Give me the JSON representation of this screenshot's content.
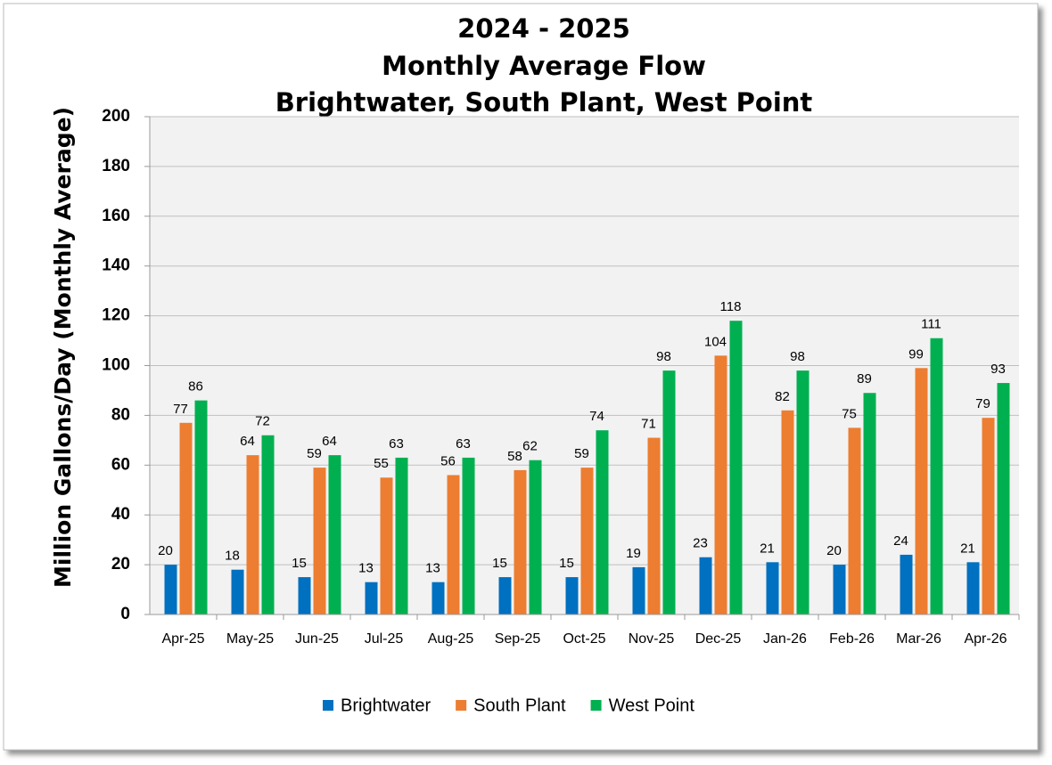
{
  "chart_data": {
    "type": "bar",
    "title": [
      "2024 - 2025",
      "Monthly Average Flow",
      "Brightwater, South Plant, West Point"
    ],
    "y_label": "Million Gallons/Day (Monthly Average)",
    "categories": [
      "Apr-25",
      "May-25",
      "Jun-25",
      "Jul-25",
      "Aug-25",
      "Sep-25",
      "Oct-25",
      "Nov-25",
      "Dec-25",
      "Jan-26",
      "Feb-26",
      "Mar-26",
      "Apr-26"
    ],
    "series": [
      {
        "name": "Brightwater",
        "color": "#0070c0",
        "values": [
          20,
          18,
          15,
          13,
          13,
          15,
          15,
          19,
          23,
          21,
          20,
          24,
          21
        ]
      },
      {
        "name": "South Plant",
        "color": "#ed7d31",
        "values": [
          77,
          64,
          59,
          55,
          56,
          58,
          59,
          71,
          104,
          82,
          75,
          99,
          79
        ]
      },
      {
        "name": "West Point",
        "color": "#00b050",
        "values": [
          86,
          72,
          64,
          63,
          63,
          62,
          74,
          98,
          118,
          98,
          89,
          111,
          93
        ]
      }
    ],
    "ylim": [
      0,
      200
    ],
    "yticks": [
      0,
      20,
      40,
      60,
      80,
      100,
      120,
      140,
      160,
      180,
      200
    ],
    "grid": true,
    "legend": "bottom"
  }
}
